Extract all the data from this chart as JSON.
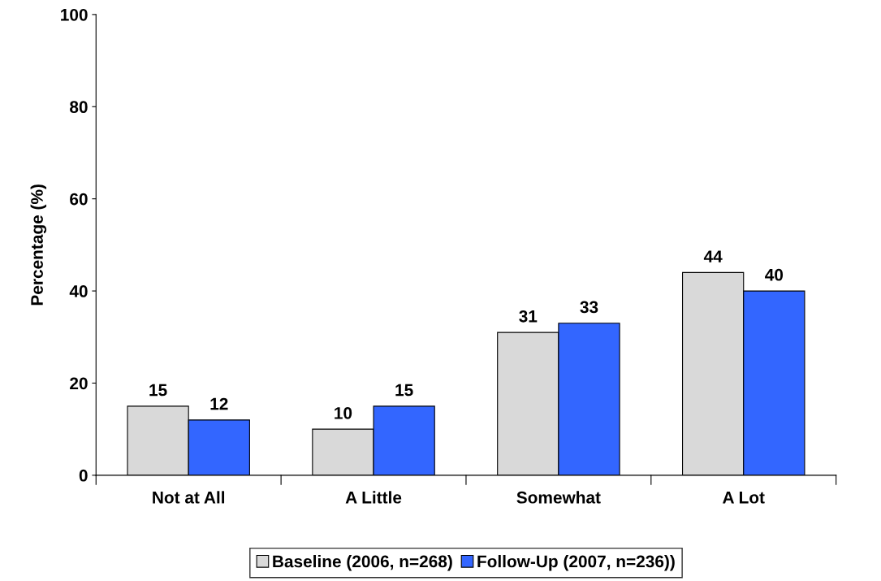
{
  "chart_data": {
    "type": "bar",
    "ylabel": "Percentage (%)",
    "categories": [
      "Not at All",
      "A Little",
      "Somewhat",
      "A Lot"
    ],
    "series": [
      {
        "name": "Baseline (2006, n=268)",
        "color": "#d9d9d9",
        "values": [
          15,
          10,
          31,
          44
        ]
      },
      {
        "name": "Follow-Up (2007, n=236))",
        "color": "#3366ff",
        "values": [
          12,
          15,
          33,
          40
        ]
      }
    ],
    "ylim": [
      0,
      100
    ],
    "yticks": [
      0,
      20,
      40,
      60,
      80,
      100
    ],
    "data_labels": true,
    "legend": "bottom",
    "grid": false
  }
}
